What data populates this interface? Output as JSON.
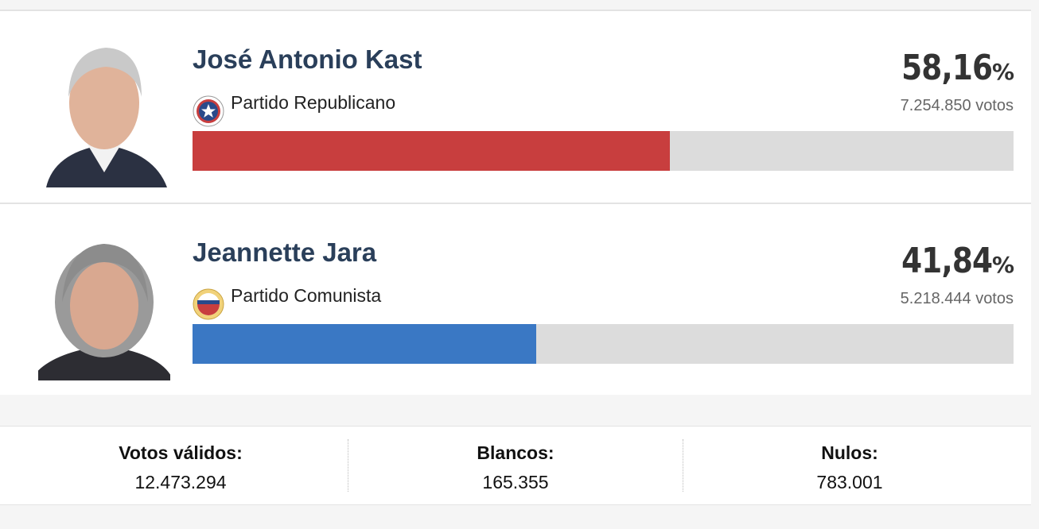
{
  "candidates": [
    {
      "name": "José Antonio Kast",
      "party": "Partido Republicano",
      "percent": 58.16,
      "percent_label": "58,16",
      "unit": "%",
      "votes": "7.254.850 votos",
      "color": "#c83e3e"
    },
    {
      "name": "Jeannette Jara",
      "party": "Partido Comunista",
      "percent": 41.84,
      "percent_label": "41,84",
      "unit": "%",
      "votes": "5.218.444 votos",
      "color": "#3a78c4"
    }
  ],
  "summary": [
    {
      "label": "Votos válidos:",
      "value": "12.473.294"
    },
    {
      "label": "Blancos:",
      "value": "165.355"
    },
    {
      "label": "Nulos:",
      "value": "783.001"
    }
  ]
}
